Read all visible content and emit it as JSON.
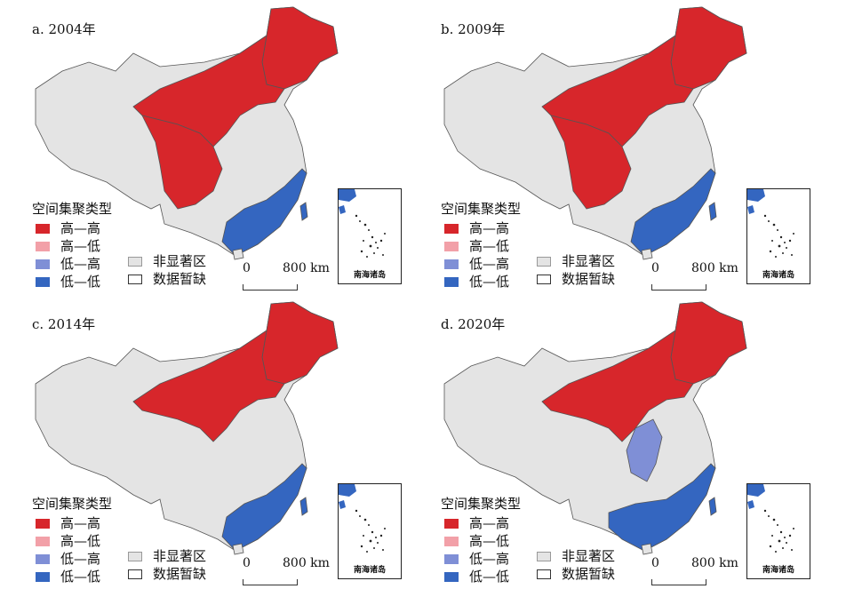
{
  "panels": [
    {
      "title": "a. 2004年",
      "clusters": {
        "northeast": "high",
        "north": "high",
        "west": "high",
        "center": "none",
        "south": "low"
      }
    },
    {
      "title": "b. 2009年",
      "clusters": {
        "northeast": "high",
        "north": "high",
        "west": "high",
        "center": "none",
        "south": "low"
      }
    },
    {
      "title": "c. 2014年",
      "clusters": {
        "northeast": "high",
        "north": "high",
        "west": "none",
        "center": "none",
        "south": "low"
      }
    },
    {
      "title": "d. 2020年",
      "clusters": {
        "northeast": "high",
        "north": "high",
        "west": "none",
        "center": "lowhigh",
        "south": "low"
      }
    }
  ],
  "legend": {
    "title": "空间集聚类型",
    "items": [
      {
        "label": "高—高",
        "color": "#d7262b"
      },
      {
        "label": "高—低",
        "color": "#f2a0a8"
      },
      {
        "label": "低—高",
        "color": "#7f8fd6"
      },
      {
        "label": "低—低",
        "color": "#3466c0"
      }
    ],
    "extra": [
      {
        "label": "非显著区",
        "color": "#e4e4e4"
      },
      {
        "label": "数据暂缺",
        "color": "#ffffff"
      }
    ]
  },
  "scale": {
    "zero": "0",
    "distance": "800 km"
  },
  "inset": {
    "label": "南海诸岛"
  },
  "colors": {
    "high": "#d7262b",
    "low": "#3466c0",
    "lowhigh": "#7f8fd6",
    "none": "#e4e4e4",
    "border": "#333333"
  }
}
